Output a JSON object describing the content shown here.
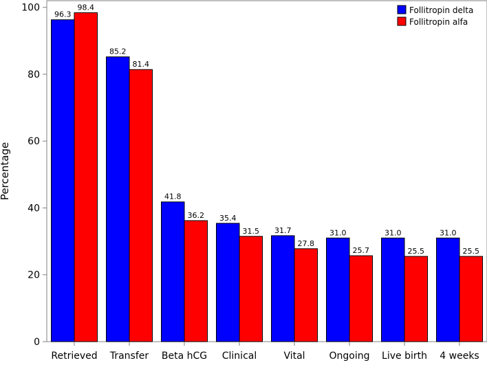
{
  "chart_data": {
    "type": "bar",
    "title": "",
    "xlabel": "",
    "ylabel": "Percentage",
    "ylim": [
      0,
      102
    ],
    "yticks": [
      0,
      20,
      40,
      60,
      80,
      100
    ],
    "categories": [
      "Retrieved",
      "Transfer",
      "Beta hCG",
      "Clinical",
      "Vital",
      "Ongoing",
      "Live birth",
      "4 weeks"
    ],
    "series": [
      {
        "name": "Follitropin delta",
        "color": "#0000ff",
        "values": [
          96.3,
          85.2,
          41.8,
          35.4,
          31.7,
          31.0,
          31.0,
          31.0
        ],
        "labels": [
          "96.3",
          "85.2",
          "41.8",
          "35.4",
          "31.7",
          "31.0",
          "31.0",
          "31.0"
        ]
      },
      {
        "name": "Follitropin alfa",
        "color": "#ff0000",
        "values": [
          98.4,
          81.4,
          36.2,
          31.5,
          27.8,
          25.7,
          25.5,
          25.5
        ],
        "labels": [
          "98.4",
          "81.4",
          "36.2",
          "31.5",
          "27.8",
          "25.7",
          "25.5",
          "25.5"
        ]
      }
    ],
    "legend": {
      "position": "top-right"
    },
    "grid": false
  }
}
